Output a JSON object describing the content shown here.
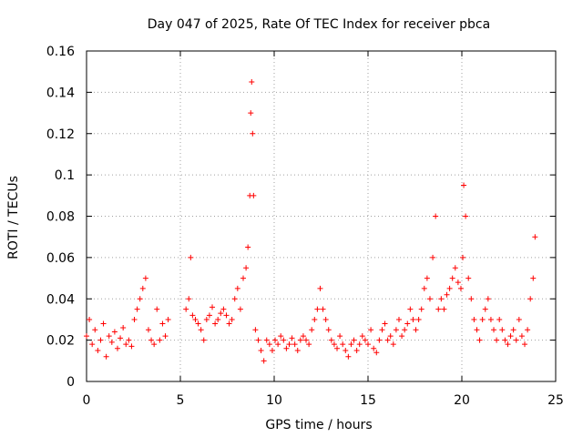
{
  "chart_data": {
    "type": "scatter",
    "title": "Day 047 of 2025, Rate Of TEC Index for receiver pbca",
    "xlabel": "GPS time / hours",
    "ylabel": "ROTI / TECUs",
    "xlim": [
      0,
      25
    ],
    "ylim": [
      0,
      0.16
    ],
    "x_ticks": [
      0,
      5,
      10,
      15,
      20,
      25
    ],
    "x_tick_labels": [
      "0",
      "5",
      "10",
      "15",
      "20",
      "25"
    ],
    "y_ticks": [
      0,
      0.02,
      0.04,
      0.06,
      0.08,
      0.1,
      0.12,
      0.14,
      0.16
    ],
    "y_tick_labels": [
      "0",
      "0.02",
      "0.04",
      "0.06",
      "0.08",
      "0.1",
      "0.12",
      "0.14",
      "0.16"
    ],
    "grid": true,
    "marker": "plus",
    "color": "#ff0000",
    "series": [
      {
        "name": "ROTI",
        "x": [
          0.0,
          0.15,
          0.3,
          0.45,
          0.6,
          0.75,
          0.9,
          1.05,
          1.2,
          1.35,
          1.5,
          1.65,
          1.8,
          1.95,
          2.1,
          2.25,
          2.4,
          2.55,
          2.7,
          2.85,
          3.0,
          3.15,
          3.3,
          3.45,
          3.6,
          3.75,
          3.9,
          4.05,
          4.2,
          4.35,
          5.3,
          5.45,
          5.55,
          5.65,
          5.8,
          5.95,
          6.1,
          6.25,
          6.4,
          6.55,
          6.7,
          6.85,
          7.0,
          7.15,
          7.3,
          7.45,
          7.6,
          7.75,
          7.9,
          8.05,
          8.2,
          8.35,
          8.5,
          8.6,
          8.7,
          8.75,
          8.8,
          8.85,
          8.9,
          9.0,
          9.15,
          9.3,
          9.45,
          9.6,
          9.75,
          9.9,
          10.05,
          10.2,
          10.35,
          10.5,
          10.65,
          10.8,
          10.95,
          11.1,
          11.25,
          11.4,
          11.55,
          11.7,
          11.85,
          12.0,
          12.15,
          12.3,
          12.45,
          12.6,
          12.75,
          12.9,
          13.05,
          13.2,
          13.35,
          13.5,
          13.65,
          13.8,
          13.95,
          14.1,
          14.25,
          14.4,
          14.55,
          14.7,
          14.85,
          15.0,
          15.15,
          15.3,
          15.45,
          15.6,
          15.75,
          15.9,
          16.05,
          16.2,
          16.35,
          16.5,
          16.65,
          16.8,
          16.95,
          17.1,
          17.25,
          17.4,
          17.55,
          17.7,
          17.85,
          18.0,
          18.15,
          18.3,
          18.45,
          18.6,
          18.75,
          18.9,
          19.05,
          19.2,
          19.35,
          19.5,
          19.65,
          19.8,
          19.95,
          20.05,
          20.1,
          20.2,
          20.35,
          20.5,
          20.65,
          20.8,
          20.95,
          21.1,
          21.25,
          21.4,
          21.55,
          21.7,
          21.85,
          22.0,
          22.15,
          22.3,
          22.45,
          22.6,
          22.75,
          22.9,
          23.05,
          23.2,
          23.35,
          23.5,
          23.65,
          23.8,
          23.9
        ],
        "y": [
          0.022,
          0.03,
          0.018,
          0.025,
          0.015,
          0.02,
          0.028,
          0.012,
          0.022,
          0.019,
          0.024,
          0.016,
          0.021,
          0.026,
          0.018,
          0.02,
          0.017,
          0.03,
          0.035,
          0.04,
          0.045,
          0.05,
          0.025,
          0.02,
          0.018,
          0.035,
          0.02,
          0.028,
          0.022,
          0.03,
          0.035,
          0.04,
          0.06,
          0.032,
          0.03,
          0.028,
          0.025,
          0.02,
          0.03,
          0.032,
          0.036,
          0.028,
          0.03,
          0.033,
          0.035,
          0.032,
          0.028,
          0.03,
          0.04,
          0.045,
          0.035,
          0.05,
          0.055,
          0.065,
          0.09,
          0.13,
          0.145,
          0.12,
          0.09,
          0.025,
          0.02,
          0.015,
          0.01,
          0.02,
          0.018,
          0.015,
          0.02,
          0.018,
          0.022,
          0.02,
          0.016,
          0.018,
          0.021,
          0.018,
          0.015,
          0.02,
          0.022,
          0.02,
          0.018,
          0.025,
          0.03,
          0.035,
          0.045,
          0.035,
          0.03,
          0.025,
          0.02,
          0.018,
          0.016,
          0.022,
          0.018,
          0.015,
          0.012,
          0.018,
          0.02,
          0.015,
          0.018,
          0.022,
          0.02,
          0.018,
          0.025,
          0.016,
          0.014,
          0.02,
          0.025,
          0.028,
          0.02,
          0.022,
          0.018,
          0.025,
          0.03,
          0.022,
          0.025,
          0.028,
          0.035,
          0.03,
          0.025,
          0.03,
          0.035,
          0.045,
          0.05,
          0.04,
          0.06,
          0.08,
          0.035,
          0.04,
          0.035,
          0.042,
          0.045,
          0.05,
          0.055,
          0.048,
          0.045,
          0.06,
          0.095,
          0.08,
          0.05,
          0.04,
          0.03,
          0.025,
          0.02,
          0.03,
          0.035,
          0.04,
          0.03,
          0.025,
          0.02,
          0.03,
          0.025,
          0.02,
          0.018,
          0.022,
          0.025,
          0.02,
          0.03,
          0.022,
          0.018,
          0.025,
          0.04,
          0.05,
          0.07
        ]
      }
    ]
  }
}
